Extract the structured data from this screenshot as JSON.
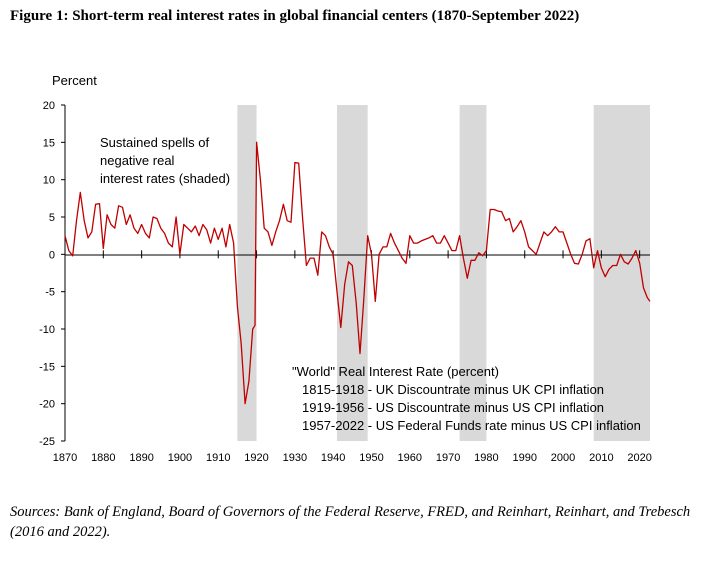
{
  "figure_title": "Figure 1: Short-term real interest rates in global financial centers (1870-September 2022)",
  "sources": "Sources: Bank of England, Board of Governors of the Federal Reserve, FRED, and Reinhart, Reinhart, and Trebesch (2016 and 2022).",
  "chart_data": {
    "type": "line",
    "title": "",
    "xlabel": "",
    "ylabel": "Percent",
    "xlim": [
      1870,
      2022.7
    ],
    "ylim": [
      -25,
      20
    ],
    "y_ticks": [
      20,
      15,
      10,
      5,
      0,
      -5,
      -10,
      -15,
      -20,
      -25
    ],
    "x_ticks": [
      1870,
      1880,
      1890,
      1900,
      1910,
      1920,
      1930,
      1940,
      1950,
      1960,
      1970,
      1980,
      1990,
      2000,
      2010,
      2020
    ],
    "grid": false,
    "colors": {
      "line": "#c00000",
      "shade": "#d9d9d9",
      "axis": "#000000"
    },
    "shaded_spells": [
      [
        1915,
        1920
      ],
      [
        1941,
        1949
      ],
      [
        1973,
        1980
      ],
      [
        2008,
        2022.7
      ]
    ],
    "shade_annotation": [
      "Sustained spells of",
      "negative real",
      "interest rates (shaded)"
    ],
    "legend": {
      "title": "\"World\" Real Interest Rate (percent)",
      "lines": [
        "1815-1918  - UK Discountrate minus UK CPI inflation",
        "1919-1956  - US Discountrate minus US CPI inflation",
        "1957-2022  - US Federal Funds rate minus US CPI inflation"
      ]
    },
    "series": [
      {
        "values": [
          [
            1870,
            2.5
          ],
          [
            1871,
            0.5
          ],
          [
            1872,
            -0.2
          ],
          [
            1873,
            4.5
          ],
          [
            1874,
            8.3
          ],
          [
            1875,
            4.5
          ],
          [
            1876,
            2.2
          ],
          [
            1877,
            3.0
          ],
          [
            1878,
            6.7
          ],
          [
            1879,
            6.8
          ],
          [
            1880,
            0.8
          ],
          [
            1881,
            5.3
          ],
          [
            1882,
            4.0
          ],
          [
            1883,
            3.5
          ],
          [
            1884,
            6.5
          ],
          [
            1885,
            6.3
          ],
          [
            1886,
            4.0
          ],
          [
            1887,
            5.3
          ],
          [
            1888,
            3.5
          ],
          [
            1889,
            2.8
          ],
          [
            1890,
            4.0
          ],
          [
            1891,
            2.8
          ],
          [
            1892,
            2.2
          ],
          [
            1893,
            5.0
          ],
          [
            1894,
            4.8
          ],
          [
            1895,
            3.5
          ],
          [
            1896,
            2.8
          ],
          [
            1897,
            1.5
          ],
          [
            1898,
            1.0
          ],
          [
            1899,
            5.0
          ],
          [
            1900,
            0.0
          ],
          [
            1901,
            4.0
          ],
          [
            1902,
            3.5
          ],
          [
            1903,
            3.0
          ],
          [
            1904,
            3.8
          ],
          [
            1905,
            2.5
          ],
          [
            1906,
            4.0
          ],
          [
            1907,
            3.3
          ],
          [
            1908,
            1.5
          ],
          [
            1909,
            3.5
          ],
          [
            1910,
            2.0
          ],
          [
            1911,
            3.5
          ],
          [
            1912,
            1.0
          ],
          [
            1913,
            4.0
          ],
          [
            1914,
            1.5
          ],
          [
            1915,
            -7.0
          ],
          [
            1916,
            -12.0
          ],
          [
            1917,
            -20.0
          ],
          [
            1918,
            -17.0
          ],
          [
            1919,
            -10.0
          ],
          [
            1919.6,
            -9.5
          ],
          [
            1920,
            15.0
          ],
          [
            1921,
            10.0
          ],
          [
            1922,
            3.5
          ],
          [
            1923,
            3.0
          ],
          [
            1924,
            1.2
          ],
          [
            1925,
            3.0
          ],
          [
            1926,
            4.5
          ],
          [
            1927,
            6.7
          ],
          [
            1928,
            4.5
          ],
          [
            1929,
            4.3
          ],
          [
            1930,
            12.3
          ],
          [
            1931,
            12.2
          ],
          [
            1932,
            5.0
          ],
          [
            1933,
            -1.5
          ],
          [
            1934,
            -0.5
          ],
          [
            1935,
            -0.5
          ],
          [
            1936,
            -2.8
          ],
          [
            1937,
            3.0
          ],
          [
            1938,
            2.5
          ],
          [
            1939,
            1.0
          ],
          [
            1940,
            0.0
          ],
          [
            1941,
            -5.0
          ],
          [
            1942,
            -9.8
          ],
          [
            1943,
            -4.0
          ],
          [
            1944,
            -1.0
          ],
          [
            1945,
            -1.5
          ],
          [
            1946,
            -6.5
          ],
          [
            1947,
            -13.3
          ],
          [
            1948,
            -6.0
          ],
          [
            1949,
            2.5
          ],
          [
            1950,
            0.0
          ],
          [
            1951,
            -6.3
          ],
          [
            1952,
            0.0
          ],
          [
            1953,
            1.0
          ],
          [
            1954,
            1.0
          ],
          [
            1955,
            2.8
          ],
          [
            1956,
            1.5
          ],
          [
            1957,
            0.5
          ],
          [
            1958,
            -0.5
          ],
          [
            1959,
            -1.2
          ],
          [
            1960,
            2.5
          ],
          [
            1961,
            1.5
          ],
          [
            1962,
            1.5
          ],
          [
            1963,
            1.8
          ],
          [
            1964,
            2.0
          ],
          [
            1965,
            2.2
          ],
          [
            1966,
            2.5
          ],
          [
            1967,
            1.5
          ],
          [
            1968,
            1.5
          ],
          [
            1969,
            2.5
          ],
          [
            1970,
            1.5
          ],
          [
            1971,
            0.5
          ],
          [
            1972,
            0.5
          ],
          [
            1973,
            2.5
          ],
          [
            1974,
            -0.5
          ],
          [
            1975,
            -3.2
          ],
          [
            1976,
            -0.8
          ],
          [
            1977,
            -0.8
          ],
          [
            1978,
            0.2
          ],
          [
            1979,
            -0.2
          ],
          [
            1980,
            0.5
          ],
          [
            1981,
            6.0
          ],
          [
            1982,
            6.0
          ],
          [
            1983,
            5.8
          ],
          [
            1984,
            5.7
          ],
          [
            1985,
            4.5
          ],
          [
            1986,
            4.8
          ],
          [
            1987,
            3.0
          ],
          [
            1988,
            3.7
          ],
          [
            1989,
            4.5
          ],
          [
            1990,
            3.0
          ],
          [
            1991,
            1.0
          ],
          [
            1992,
            0.5
          ],
          [
            1993,
            0.0
          ],
          [
            1994,
            1.5
          ],
          [
            1995,
            3.0
          ],
          [
            1996,
            2.5
          ],
          [
            1997,
            3.0
          ],
          [
            1998,
            3.7
          ],
          [
            1999,
            3.0
          ],
          [
            2000,
            3.0
          ],
          [
            2001,
            1.5
          ],
          [
            2002,
            0.0
          ],
          [
            2003,
            -1.2
          ],
          [
            2004,
            -1.3
          ],
          [
            2005,
            0.0
          ],
          [
            2006,
            1.8
          ],
          [
            2007,
            2.1
          ],
          [
            2008,
            -1.8
          ],
          [
            2009,
            0.5
          ],
          [
            2010,
            -1.8
          ],
          [
            2011,
            -3.0
          ],
          [
            2012,
            -2.0
          ],
          [
            2013,
            -1.5
          ],
          [
            2014,
            -1.5
          ],
          [
            2015,
            0.0
          ],
          [
            2016,
            -1.0
          ],
          [
            2017,
            -1.3
          ],
          [
            2018,
            -0.5
          ],
          [
            2019,
            0.5
          ],
          [
            2020,
            -1.2
          ],
          [
            2021,
            -4.5
          ],
          [
            2022,
            -5.8
          ],
          [
            2022.7,
            -6.3
          ]
        ]
      }
    ]
  }
}
